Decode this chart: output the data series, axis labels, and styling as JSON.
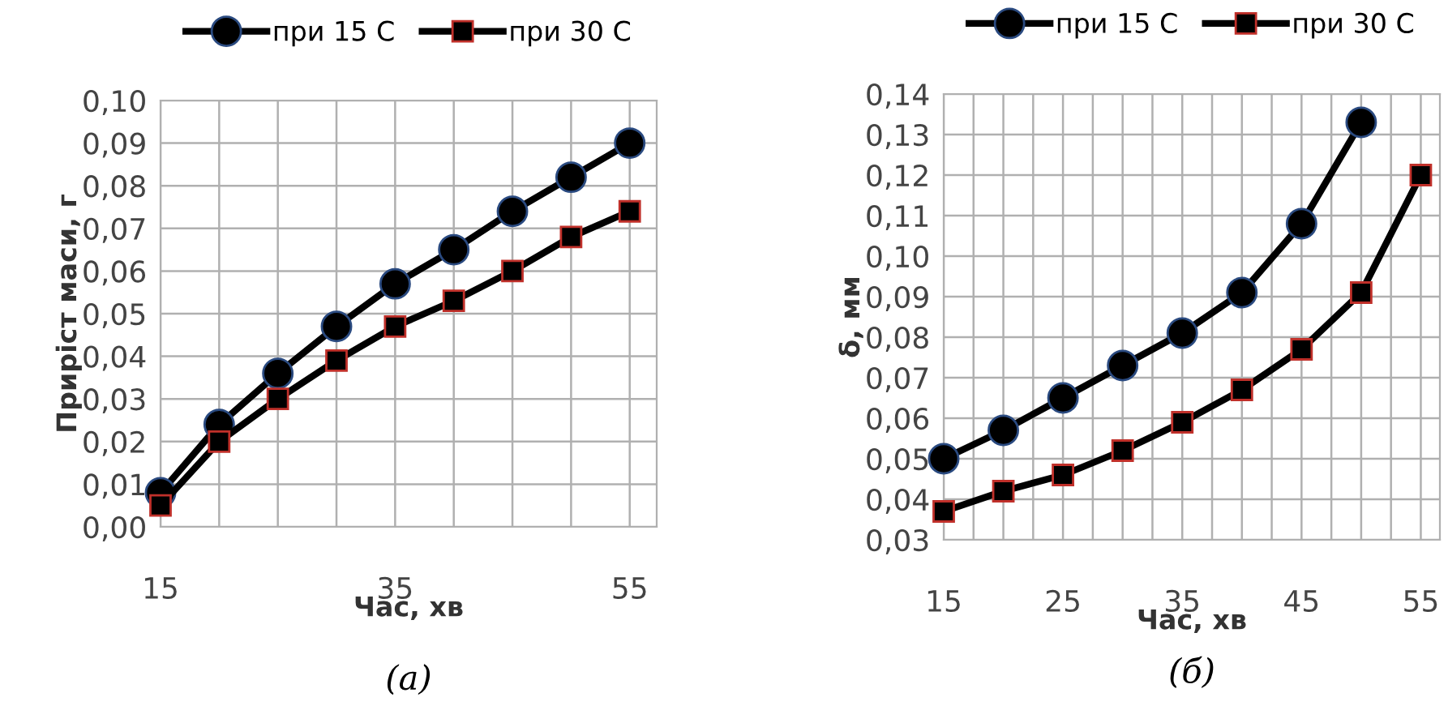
{
  "chart_data": [
    {
      "type": "line",
      "xlabel": "Час, хв",
      "ylabel": "Приріст маси, г",
      "x": [
        15,
        20,
        25,
        30,
        35,
        40,
        45,
        50,
        55
      ],
      "series": [
        {
          "name": "при 15 С",
          "color": "#000000",
          "marker": "circle",
          "values": [
            0.008,
            0.024,
            0.036,
            0.047,
            0.057,
            0.065,
            0.074,
            0.082,
            0.09
          ]
        },
        {
          "name": "при 30 С",
          "color": "#000000",
          "marker": "square",
          "values": [
            0.005,
            0.02,
            0.03,
            0.039,
            0.047,
            0.053,
            0.06,
            0.068,
            0.074
          ]
        }
      ],
      "xlim": [
        15,
        57.3
      ],
      "xticks": [
        15,
        {
          "value": 20,
          "label": null
        },
        {
          "value": 25,
          "label": null
        },
        {
          "value": 30,
          "label": null
        },
        35,
        {
          "value": 40,
          "label": null
        },
        {
          "value": 45,
          "label": null
        },
        {
          "value": 50,
          "label": null
        },
        55
      ],
      "ylim": [
        0,
        0.1
      ],
      "yticks": [
        {
          "value": 0,
          "label": "0,00"
        },
        {
          "value": 0.01,
          "label": "0,01"
        },
        {
          "value": 0.02,
          "label": "0,02"
        },
        {
          "value": 0.03,
          "label": "0,03"
        },
        {
          "value": 0.04,
          "label": "0,04"
        },
        {
          "value": 0.05,
          "label": "0,05"
        },
        {
          "value": 0.06,
          "label": "0,06"
        },
        {
          "value": 0.07,
          "label": "0,07"
        },
        {
          "value": 0.08,
          "label": "0,08"
        },
        {
          "value": 0.09,
          "label": "0,09"
        },
        {
          "value": 0.1,
          "label": "0,10"
        }
      ],
      "grid": true,
      "legend": "top",
      "line_style": "solid",
      "annotations": [
        "(а)"
      ]
    },
    {
      "type": "line",
      "xlabel": "Час, хв",
      "ylabel": "δ, мм",
      "series": [
        {
          "name": "при 15 С",
          "color": "#000000",
          "marker": "circle",
          "x": [
            15,
            20,
            25,
            30,
            35,
            40,
            45,
            50
          ],
          "values": [
            0.05,
            0.057,
            0.065,
            0.073,
            0.081,
            0.091,
            0.108,
            0.133
          ]
        },
        {
          "name": "при 30 С",
          "color": "#000000",
          "marker": "square",
          "x": [
            15,
            20,
            25,
            30,
            35,
            40,
            45,
            50,
            55
          ],
          "values": [
            0.037,
            0.042,
            0.046,
            0.052,
            0.059,
            0.067,
            0.077,
            0.091,
            0.12
          ]
        }
      ],
      "xlim": [
        15,
        56.6
      ],
      "xticks": [
        15,
        {
          "value": 17.5,
          "label": null
        },
        {
          "value": 20,
          "label": null
        },
        {
          "value": 22.5,
          "label": null
        },
        25,
        {
          "value": 27.5,
          "label": null
        },
        {
          "value": 30,
          "label": null
        },
        {
          "value": 32.5,
          "label": null
        },
        35,
        {
          "value": 37.5,
          "label": null
        },
        {
          "value": 40,
          "label": null
        },
        {
          "value": 42.5,
          "label": null
        },
        45,
        {
          "value": 47.5,
          "label": null
        },
        {
          "value": 50,
          "label": null
        },
        {
          "value": 52.5,
          "label": null
        },
        55
      ],
      "ylim": [
        0.03,
        0.14
      ],
      "yticks": [
        {
          "value": 0.03,
          "label": "0,03"
        },
        {
          "value": 0.04,
          "label": "0,04"
        },
        {
          "value": 0.05,
          "label": "0,05"
        },
        {
          "value": 0.06,
          "label": "0,06"
        },
        {
          "value": 0.07,
          "label": "0,07"
        },
        {
          "value": 0.08,
          "label": "0,08"
        },
        {
          "value": 0.09,
          "label": "0,09"
        },
        {
          "value": 0.1,
          "label": "0,10"
        },
        {
          "value": 0.11,
          "label": "0,11"
        },
        {
          "value": 0.12,
          "label": "0,12"
        },
        {
          "value": 0.13,
          "label": "0,13"
        },
        {
          "value": 0.14,
          "label": "0,14"
        }
      ],
      "grid": true,
      "legend": "top",
      "line_style": "solid",
      "annotations": [
        "(б)"
      ]
    }
  ]
}
